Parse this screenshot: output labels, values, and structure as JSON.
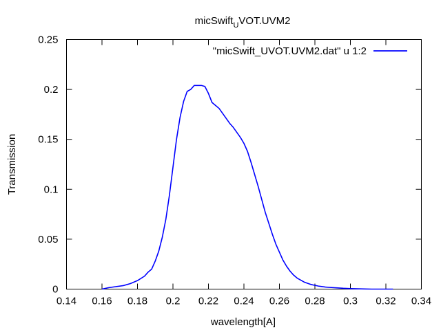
{
  "chart_data": {
    "type": "line",
    "title_main": "micSwift",
    "title_subscript": "U",
    "title_rest": "VOT.UVM2",
    "xlabel": "wavelength[A]",
    "ylabel": "Transmission",
    "xlim": [
      0.14,
      0.34
    ],
    "ylim": [
      0,
      0.25
    ],
    "x_ticks": [
      0.14,
      0.16,
      0.18,
      0.2,
      0.22,
      0.24,
      0.26,
      0.28,
      0.3,
      0.32,
      0.34
    ],
    "x_tick_labels": [
      "0.14",
      "0.16",
      "0.18",
      "0.2",
      "0.22",
      "0.24",
      "0.26",
      "0.28",
      "0.3",
      "0.32",
      "0.34"
    ],
    "y_ticks": [
      0,
      0.05,
      0.1,
      0.15,
      0.2,
      0.25
    ],
    "y_tick_labels": [
      "0",
      "0.05",
      "0.1",
      "0.15",
      "0.2",
      "0.25"
    ],
    "grid": false,
    "legend_position": "top-right",
    "series": [
      {
        "name": "\"micSwift_UVOT.UVM2.dat\" u 1:2",
        "color": "#0000ff",
        "x": [
          0.16,
          0.164,
          0.168,
          0.172,
          0.176,
          0.18,
          0.184,
          0.186,
          0.188,
          0.19,
          0.192,
          0.194,
          0.196,
          0.198,
          0.2,
          0.202,
          0.204,
          0.206,
          0.208,
          0.21,
          0.212,
          0.214,
          0.216,
          0.218,
          0.22,
          0.222,
          0.224,
          0.226,
          0.228,
          0.23,
          0.232,
          0.234,
          0.236,
          0.238,
          0.24,
          0.242,
          0.244,
          0.246,
          0.248,
          0.25,
          0.252,
          0.254,
          0.256,
          0.258,
          0.26,
          0.262,
          0.264,
          0.266,
          0.268,
          0.27,
          0.274,
          0.278,
          0.282,
          0.286,
          0.29,
          0.296,
          0.3,
          0.304,
          0.308,
          0.312,
          0.316,
          0.32,
          0.324
        ],
        "y": [
          0.0,
          0.0015,
          0.0025,
          0.0035,
          0.0055,
          0.0085,
          0.013,
          0.017,
          0.02,
          0.028,
          0.038,
          0.052,
          0.07,
          0.094,
          0.122,
          0.15,
          0.172,
          0.188,
          0.198,
          0.2,
          0.204,
          0.204,
          0.204,
          0.203,
          0.196,
          0.187,
          0.184,
          0.181,
          0.176,
          0.171,
          0.166,
          0.162,
          0.157,
          0.152,
          0.146,
          0.138,
          0.127,
          0.115,
          0.103,
          0.09,
          0.077,
          0.066,
          0.055,
          0.045,
          0.037,
          0.029,
          0.023,
          0.018,
          0.014,
          0.011,
          0.007,
          0.0045,
          0.003,
          0.002,
          0.0015,
          0.0008,
          0.0005,
          0.0003,
          0.0001,
          0.0,
          0.0,
          0.0,
          0.0
        ]
      }
    ]
  }
}
